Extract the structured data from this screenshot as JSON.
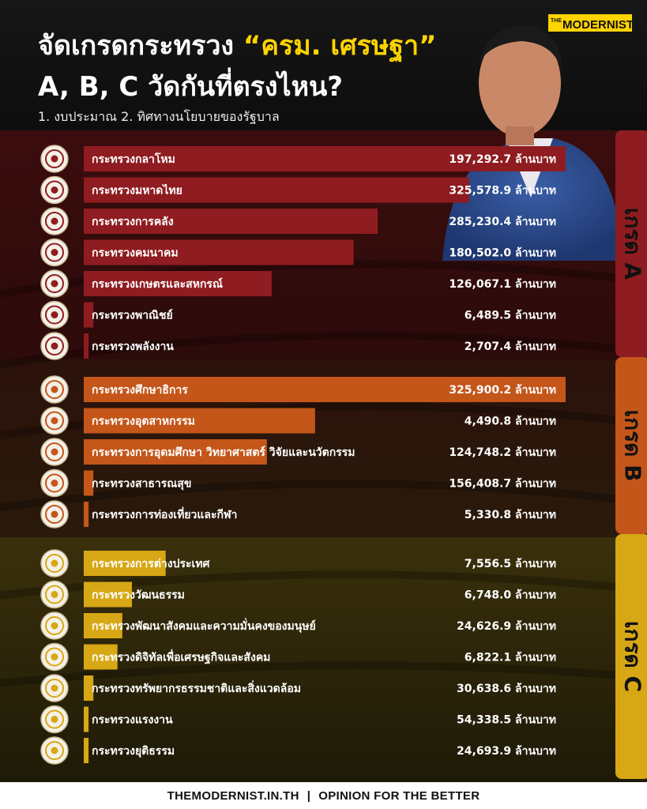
{
  "header": {
    "brand_logo": "THE MODERNIST",
    "title_pre": "จัดเกรดกระทรวง ",
    "title_highlight": "“ครม. เศรษฐา”",
    "title_line2": "A, B, C วัดกันที่ตรงไหน?",
    "subtitle": "1. งบประมาณ  2. ทิศทางนโยบายของรัฐบาล"
  },
  "colors": {
    "grade_a": "#8f1c20",
    "grade_b": "#c4561a",
    "grade_c": "#d7a715",
    "highlight": "#ffd400"
  },
  "chart_data": {
    "type": "bar",
    "orientation": "horizontal",
    "unit": "ล้านบาท",
    "groups": [
      {
        "name": "เกรด A",
        "color": "#8f1c20",
        "items": [
          {
            "label": "กระทรวงกลาโหม",
            "value": 197292.7,
            "value_text": "197,292.7 ล้านบาท",
            "bar": 1.0
          },
          {
            "label": "กระทรวงมหาดไทย",
            "value": 325578.9,
            "value_text": "325,578.9 ล้านบาท",
            "bar": 0.8
          },
          {
            "label": "กระทรวงการคลัง",
            "value": 285230.4,
            "value_text": "285,230.4 ล้านบาท",
            "bar": 0.61
          },
          {
            "label": "กระทรวงคมนาคม",
            "value": 180502.0,
            "value_text": "180,502.0 ล้านบาท",
            "bar": 0.56
          },
          {
            "label": "กระทรวงเกษตรและสหกรณ์",
            "value": 126067.1,
            "value_text": "126,067.1 ล้านบาท",
            "bar": 0.39
          },
          {
            "label": "กระทรวงพาณิชย์",
            "value": 6489.5,
            "value_text": "6,489.5 ล้านบาท",
            "bar": 0.02
          },
          {
            "label": "กระทรวงพลังงาน",
            "value": 2707.4,
            "value_text": "2,707.4 ล้านบาท",
            "bar": 0.01
          }
        ]
      },
      {
        "name": "เกรด B",
        "color": "#c4561a",
        "items": [
          {
            "label": "กระทรวงศึกษาธิการ",
            "value": 325900.2,
            "value_text": "325,900.2 ล้านบาท",
            "bar": 1.0
          },
          {
            "label": "กระทรวงอุตสาหกรรม",
            "value": 4490.8,
            "value_text": "4,490.8 ล้านบาท",
            "bar": 0.48
          },
          {
            "label": "กระทรวงการอุดมศึกษา วิทยาศาสตร์ วิจัยและนวัตกรรม",
            "value": 124748.2,
            "value_text": "124,748.2 ล้านบาท",
            "bar": 0.38
          },
          {
            "label": "กระทรวงสาธารณสุข",
            "value": 156408.7,
            "value_text": "156,408.7 ล้านบาท",
            "bar": 0.02
          },
          {
            "label": "กระทรวงการท่องเที่ยวและกีฬา",
            "value": 5330.8,
            "value_text": "5,330.8 ล้านบาท",
            "bar": 0.01
          }
        ]
      },
      {
        "name": "เกรด C",
        "color": "#d7a715",
        "items": [
          {
            "label": "กระทรวงการต่างประเทศ",
            "value": 7556.5,
            "value_text": "7,556.5 ล้านบาท",
            "bar": 0.17
          },
          {
            "label": "กระทรวงวัฒนธรรม",
            "value": 6748.0,
            "value_text": "6,748.0 ล้านบาท",
            "bar": 0.1
          },
          {
            "label": "กระทรวงพัฒนาสังคมและความมั่นคงของมนุษย์",
            "value": 24626.9,
            "value_text": "24,626.9 ล้านบาท",
            "bar": 0.08
          },
          {
            "label": "กระทรวงดิจิทัลเพื่อเศรษฐกิจและสังคม",
            "value": 6822.1,
            "value_text": "6,822.1 ล้านบาท",
            "bar": 0.07
          },
          {
            "label": "กระทรวงทรัพยากรธรรมชาติและสิ่งแวดล้อม",
            "value": 30638.6,
            "value_text": "30,638.6 ล้านบาท",
            "bar": 0.02
          },
          {
            "label": "กระทรวงแรงงาน",
            "value": 54338.5,
            "value_text": "54,338.5 ล้านบาท",
            "bar": 0.01
          },
          {
            "label": "กระทรวงยุติธรรม",
            "value": 24693.9,
            "value_text": "24,693.9 ล้านบาท",
            "bar": 0.01
          }
        ]
      }
    ]
  },
  "footer": {
    "site": "THEMODERNIST.IN.TH",
    "separator": "|",
    "tagline": "OPINION FOR THE BETTER"
  }
}
